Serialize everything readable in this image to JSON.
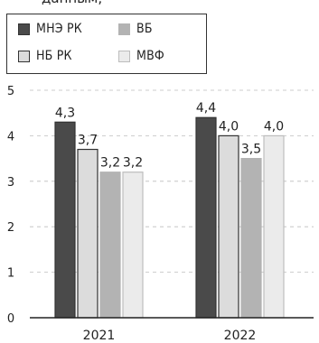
{
  "chart_data": {
    "type": "bar",
    "title_fragment": "данным,",
    "categories": [
      "2021",
      "2022"
    ],
    "series": [
      {
        "name": "МНЭ РК",
        "values": [
          4.3,
          4.4
        ],
        "labels": [
          "4,3",
          "4,4"
        ],
        "color": "#4a4a4a",
        "border": "#333333"
      },
      {
        "name": "НБ РК",
        "values": [
          3.7,
          4.0
        ],
        "labels": [
          "3,7",
          "4,0"
        ],
        "color": "#dcdcdc",
        "border": "#333333"
      },
      {
        "name": "ВБ",
        "values": [
          3.2,
          3.5
        ],
        "labels": [
          "3,2",
          "3,5"
        ],
        "color": "#b3b3b3",
        "border": "#b3b3b3"
      },
      {
        "name": "МВФ",
        "values": [
          3.2,
          4.0
        ],
        "labels": [
          "3,2",
          "4,0"
        ],
        "color": "#ebebeb",
        "border": "#bdbdbd"
      }
    ],
    "y_ticks": [
      "0",
      "1",
      "2",
      "3",
      "4",
      "5"
    ],
    "ylim": [
      0,
      5
    ],
    "grid": true,
    "legend": "top-left"
  }
}
